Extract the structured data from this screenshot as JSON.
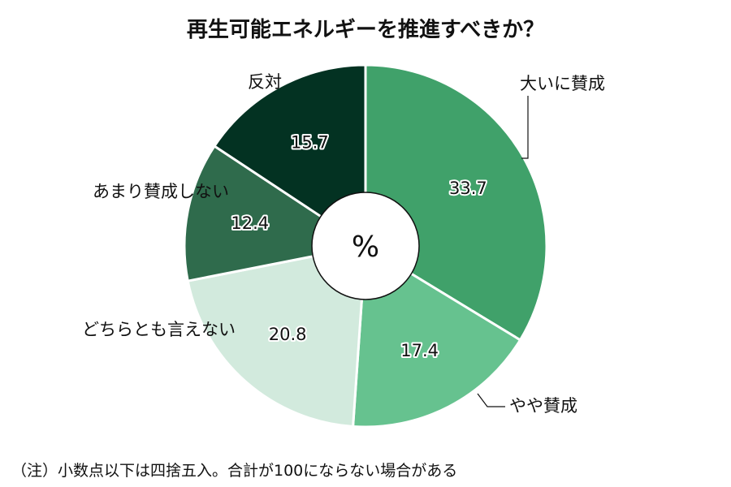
{
  "chart_data": {
    "type": "pie",
    "title": "再生可能エネルギーを推進すべきか？",
    "center_label": "%",
    "categories": [
      "大いに賛成",
      "やや賛成",
      "どちらとも言えない",
      "あまり賛成しない",
      "反対"
    ],
    "values": [
      33.7,
      17.4,
      20.8,
      12.4,
      15.7
    ],
    "value_labels": [
      "33.7",
      "17.4",
      "20.8",
      "12.4",
      "15.7"
    ],
    "colors": [
      "#40a16a",
      "#66c28f",
      "#d2eadd",
      "#2f6b4c",
      "#033222"
    ],
    "note": "（注）小数点以下は四捨五入。合計が100にならない場合がある"
  }
}
